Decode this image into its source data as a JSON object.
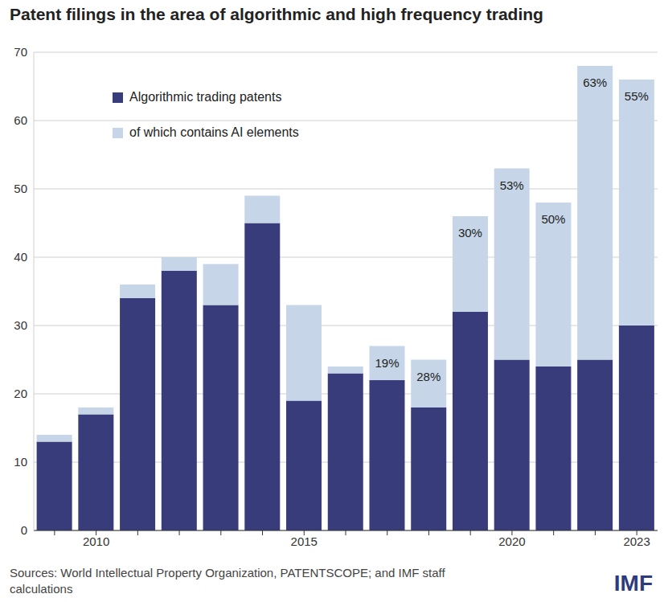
{
  "chart_data": {
    "type": "bar",
    "title": "Patent filings in the area of algorithmic and high frequency trading",
    "categories": [
      null,
      "2010",
      null,
      null,
      null,
      null,
      "2015",
      null,
      null,
      null,
      null,
      "2020",
      null,
      null,
      "2023"
    ],
    "series": [
      {
        "name": "Algorithmic trading patents",
        "color": "#383c7a",
        "values": [
          13,
          17,
          34,
          38,
          33,
          45,
          19,
          23,
          22,
          18,
          32,
          25,
          24,
          25,
          30
        ]
      },
      {
        "name": "of which contains AI elements",
        "color": "#c6d6e8",
        "values": [
          1,
          1,
          2,
          2,
          6,
          4,
          14,
          1,
          5,
          7,
          14,
          28,
          24,
          43,
          36
        ]
      }
    ],
    "annotations": [
      null,
      null,
      null,
      null,
      null,
      null,
      null,
      null,
      "19%",
      "28%",
      "30%",
      "53%",
      "50%",
      "63%",
      "55%"
    ],
    "stacked": true,
    "ylim": [
      0,
      70
    ],
    "yticks": [
      0,
      10,
      20,
      30,
      40,
      50,
      60,
      70
    ],
    "grid": true,
    "legend": "upper left",
    "source": "Sources: World Intellectual Property Organization, PATENTSCOPE; and IMF staff calculations",
    "logo": "IMF"
  }
}
